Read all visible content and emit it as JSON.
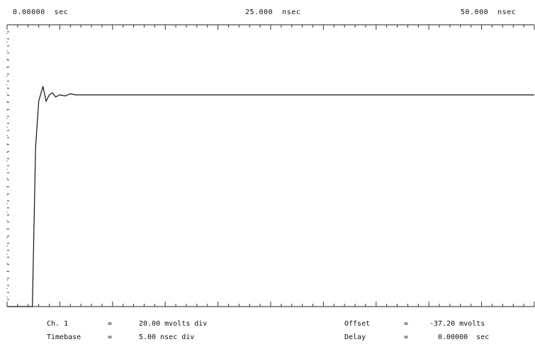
{
  "header": {
    "left": "0.00000  sec",
    "center": "25.000  nsec",
    "right": "50.000  nsec"
  },
  "footer": {
    "ch1_label": "Ch. 1",
    "ch1_eq": "=",
    "ch1_value": "20.00 mvolts div",
    "timebase_label": "Timebase",
    "timebase_eq": "=",
    "timebase_value": "5.00 nsec div",
    "offset_label": "Offset",
    "offset_eq": "=",
    "offset_value": "-37.20 mvolts",
    "delay_label": "Delay",
    "delay_eq": "=",
    "delay_value": "0.00000  sec"
  },
  "chart_data": {
    "type": "line",
    "title": "",
    "xlabel": "",
    "ylabel": "",
    "x_unit": "nsec",
    "xlim": [
      0,
      50
    ],
    "x_ticks": [
      "0.00000  sec",
      "25.000  nsec",
      "50.000  nsec"
    ],
    "grid": false,
    "series": [
      {
        "x": [
          0,
          2.4,
          2.7,
          3.0,
          3.4,
          3.7,
          4.0,
          4.3,
          4.6,
          5.0,
          5.5,
          6.0,
          6.5,
          7.5,
          9,
          11,
          14,
          20,
          30,
          40,
          50
        ],
        "y": [
          0.0,
          0.0,
          0.75,
          0.97,
          1.04,
          0.97,
          1.0,
          1.01,
          0.99,
          1.0,
          0.995,
          1.005,
          1.0,
          1.0,
          1.0,
          1.0,
          1.0,
          1.0,
          1.0,
          1.0,
          1.0
        ]
      }
    ]
  }
}
